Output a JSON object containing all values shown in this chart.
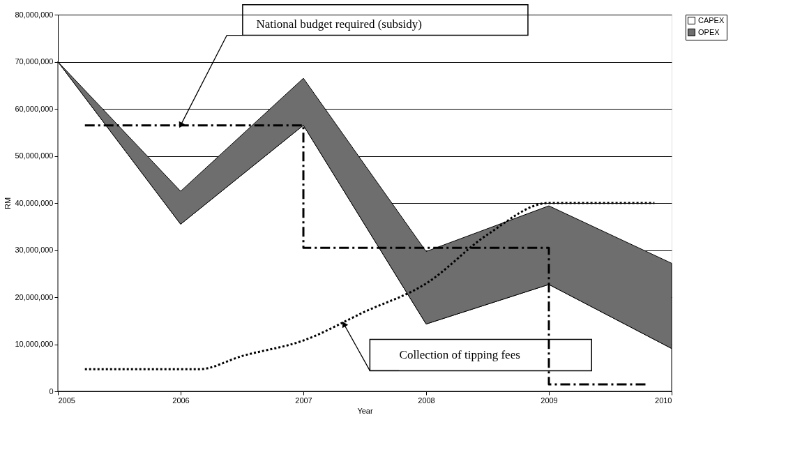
{
  "chart_data": {
    "type": "area",
    "xlabel": "Year",
    "ylabel": "RM",
    "xlim": [
      2005,
      2010
    ],
    "xticks": [
      2005,
      2006,
      2007,
      2008,
      2009,
      2010
    ],
    "ylim": [
      0,
      80000000
    ],
    "yticks": [
      0,
      {
        "value": 10000000,
        "label": "10,000,000"
      },
      {
        "value": 20000000,
        "label": "20,000,000"
      },
      {
        "value": 30000000,
        "label": "30,000,000"
      },
      {
        "value": 40000000,
        "label": "40,000,000"
      },
      {
        "value": 50000000,
        "label": "50,000,000"
      },
      {
        "value": 60000000,
        "label": "60,000,000"
      },
      {
        "value": 70000000,
        "label": "70,000,000"
      },
      {
        "value": 80000000,
        "label": "80,000,000"
      }
    ],
    "grid": "y",
    "legend": "right",
    "stacked": true,
    "x": [
      2005,
      2006,
      2007,
      2008,
      2009,
      2010
    ],
    "series": [
      {
        "name": "CAPEX",
        "color": "#ffffff",
        "values": [
          70000000,
          35500000,
          56500000,
          14300000,
          22700000,
          9100000
        ]
      },
      {
        "name": "OPEX",
        "color": "#6e6e6e",
        "values": [
          0,
          7000000,
          10000000,
          15400000,
          16700000,
          18100000
        ]
      },
      {
        "type": "step",
        "color": "#000000",
        "line_style": "dashed",
        "x": [
          2005.22,
          2007,
          2009,
          2009.8
        ],
        "values": [
          56500000,
          30500000,
          1500000,
          1500000
        ]
      },
      {
        "type": "line",
        "color": "#000000",
        "line_style": "dotted",
        "x": [
          2005.22,
          2006.15,
          2006.5,
          2007,
          2007.5,
          2008,
          2008.5,
          2009,
          2009.86
        ],
        "values": [
          4700000,
          4700000,
          7500000,
          10800000,
          16900000,
          22900000,
          33300000,
          40000000,
          40000000
        ]
      }
    ],
    "annotations": [
      {
        "text": "National budget required (subsidy)",
        "x": 2006,
        "y": 56500000
      },
      {
        "text": "Collection of tipping fees",
        "x": 2007.33,
        "y": 14300000
      }
    ]
  }
}
